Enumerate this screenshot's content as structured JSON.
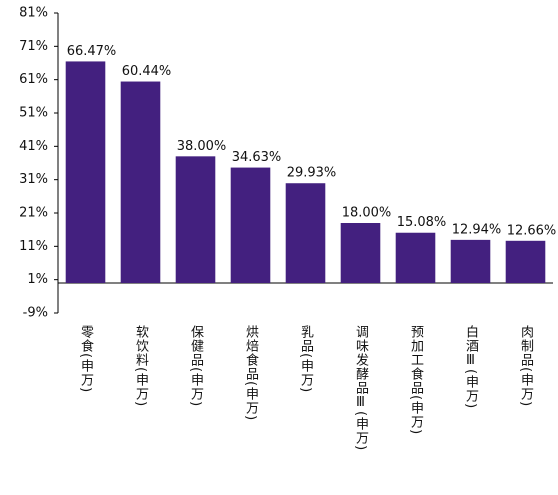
{
  "chart_data": {
    "type": "bar",
    "categories": [
      "零食(申万)",
      "软饮料(申万)",
      "保健品(申万)",
      "烘焙食品(申万)",
      "乳品(申万)",
      "调味发酵品Ⅲ(申万)",
      "预加工食品(申万)",
      "白酒Ⅲ(申万)",
      "肉制品(申万)"
    ],
    "values": [
      66.47,
      60.44,
      38.0,
      34.63,
      29.93,
      18.0,
      15.08,
      12.94,
      12.66
    ],
    "value_labels": [
      "66.47%",
      "60.44%",
      "38.00%",
      "34.63%",
      "29.93%",
      "18.00%",
      "15.08%",
      "12.94%",
      "12.66%"
    ],
    "color": "#43207f",
    "ylim": [
      -9,
      81
    ],
    "yticks": [
      {
        "value": -9,
        "label": "-9%"
      },
      {
        "value": 1,
        "label": "1%"
      },
      {
        "value": 11,
        "label": "11%"
      },
      {
        "value": 21,
        "label": "21%"
      },
      {
        "value": 31,
        "label": "31%"
      },
      {
        "value": 41,
        "label": "41%"
      },
      {
        "value": 51,
        "label": "51%"
      },
      {
        "value": 61,
        "label": "61%"
      },
      {
        "value": 71,
        "label": "71%"
      },
      {
        "value": 81,
        "label": "81%"
      }
    ],
    "grid": false
  }
}
